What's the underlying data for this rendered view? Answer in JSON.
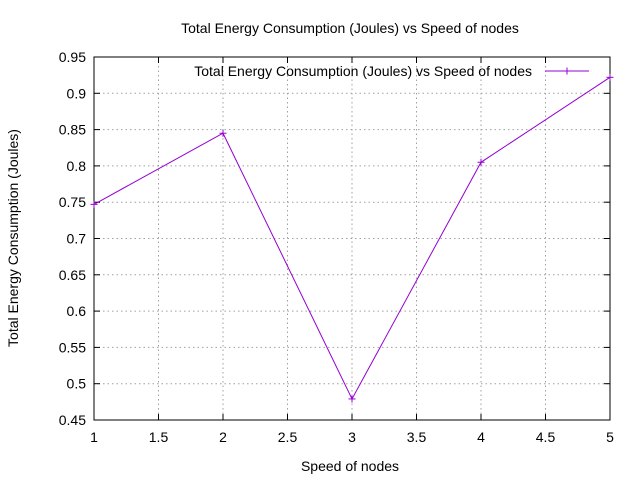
{
  "chart_data": {
    "type": "line",
    "title": "Total Energy Consumption (Joules) vs Speed of nodes",
    "xlabel": "Speed of nodes",
    "ylabel": "Total Energy Consumption (Joules)",
    "xlim": [
      1,
      5
    ],
    "ylim": [
      0.45,
      0.95
    ],
    "xticks": [
      1,
      1.5,
      2,
      2.5,
      3,
      3.5,
      4,
      4.5,
      5
    ],
    "yticks": [
      0.45,
      0.5,
      0.55,
      0.6,
      0.65,
      0.7,
      0.75,
      0.8,
      0.85,
      0.9,
      0.95
    ],
    "xtick_labels": [
      "1",
      "1.5",
      "2",
      "2.5",
      "3",
      "3.5",
      "4",
      "4.5",
      "5"
    ],
    "ytick_labels": [
      "0.45",
      "0.5",
      "0.55",
      "0.6",
      "0.65",
      "0.7",
      "0.75",
      "0.8",
      "0.85",
      "0.9",
      "0.95"
    ],
    "grid": true,
    "legend_position": "top-right",
    "series": [
      {
        "name": "Total Energy Consumption (Joules) vs Speed of nodes",
        "color": "#9400d3",
        "marker": "plus",
        "x": [
          1,
          2,
          3,
          4,
          5
        ],
        "y": [
          0.747,
          0.845,
          0.479,
          0.805,
          0.922
        ]
      }
    ]
  }
}
